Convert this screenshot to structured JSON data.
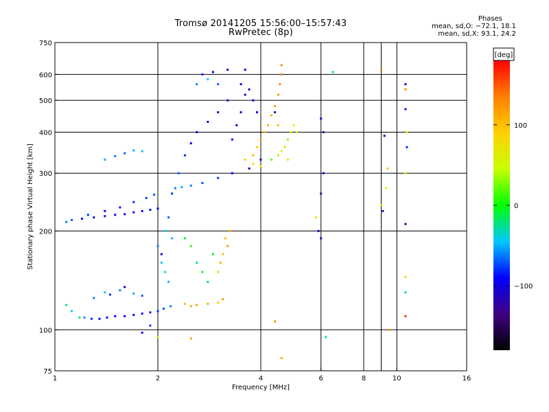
{
  "title_line1": "Tromsø 20141205 15:56:00–15:57:43",
  "title_line2": "RwPretec (8p)",
  "stats": {
    "heading": "Phases",
    "o_line": "mean, sd,O: −72.1, 18.1",
    "x_line": "mean, sd,X: 93.1, 24.2"
  },
  "colorbar": {
    "unit": "[deg]",
    "ticks": [
      "100",
      "0",
      "−100"
    ],
    "tick_values": [
      100,
      0,
      -100
    ],
    "range": [
      -180,
      180
    ],
    "colors": [
      "#000000",
      "#400080",
      "#0000ff",
      "#00c8ff",
      "#00ff00",
      "#c8ff00",
      "#ffd000",
      "#ff8000",
      "#ff0000"
    ]
  },
  "chart_data": {
    "type": "scatter",
    "xlabel": "Frequency [MHz]",
    "ylabel": "Stationary phase Virtual Height [km]",
    "xscale": "log",
    "yscale": "log",
    "xlim": [
      1,
      16
    ],
    "ylim": [
      75,
      750
    ],
    "xticks": [
      1,
      2,
      4,
      6,
      8,
      10,
      16
    ],
    "xtick_labels": [
      "1",
      "2",
      "4",
      "6",
      "8",
      "10",
      "16"
    ],
    "x_gridlines": [
      2,
      4,
      6,
      8,
      9,
      10
    ],
    "yticks": [
      75,
      100,
      200,
      300,
      400,
      500,
      600,
      750
    ],
    "ytick_labels": [
      "75",
      "100",
      "200",
      "300",
      "400",
      "500",
      "600",
      "750"
    ],
    "y_gridlines": [
      100,
      200,
      300,
      400,
      500,
      600
    ],
    "grid": true,
    "color_encoding": "phase [deg]",
    "points": [
      [
        1.08,
        119,
        -20
      ],
      [
        1.12,
        114,
        -40
      ],
      [
        1.18,
        109,
        -20
      ],
      [
        1.22,
        109,
        -60
      ],
      [
        1.28,
        108,
        -80
      ],
      [
        1.35,
        108,
        -90
      ],
      [
        1.42,
        109,
        -95
      ],
      [
        1.5,
        110,
        -100
      ],
      [
        1.6,
        110,
        -100
      ],
      [
        1.7,
        111,
        -95
      ],
      [
        1.8,
        112,
        -90
      ],
      [
        1.9,
        113,
        -85
      ],
      [
        2.0,
        114,
        -80
      ],
      [
        2.08,
        116,
        -70
      ],
      [
        2.18,
        118,
        -60
      ],
      [
        1.3,
        125,
        -60
      ],
      [
        1.4,
        130,
        -40
      ],
      [
        1.45,
        128,
        -80
      ],
      [
        1.55,
        132,
        -60
      ],
      [
        1.7,
        129,
        -50
      ],
      [
        1.8,
        127,
        -70
      ],
      [
        1.6,
        135,
        -90
      ],
      [
        1.08,
        213,
        -60
      ],
      [
        1.12,
        216,
        -70
      ],
      [
        1.2,
        218,
        -90
      ],
      [
        1.3,
        220,
        -95
      ],
      [
        1.4,
        222,
        -100
      ],
      [
        1.5,
        224,
        -100
      ],
      [
        1.6,
        225,
        -100
      ],
      [
        1.7,
        228,
        -100
      ],
      [
        1.8,
        230,
        -95
      ],
      [
        1.9,
        232,
        -95
      ],
      [
        2.0,
        234,
        -90
      ],
      [
        1.25,
        224,
        -80
      ],
      [
        1.4,
        230,
        -90
      ],
      [
        1.55,
        236,
        -85
      ],
      [
        1.7,
        245,
        -80
      ],
      [
        1.85,
        252,
        -75
      ],
      [
        1.95,
        258,
        -70
      ],
      [
        1.4,
        330,
        -50
      ],
      [
        1.5,
        338,
        -60
      ],
      [
        1.6,
        345,
        -70
      ],
      [
        1.7,
        352,
        -50
      ],
      [
        1.8,
        350,
        -40
      ],
      [
        2.0,
        180,
        -60
      ],
      [
        2.05,
        160,
        -40
      ],
      [
        2.1,
        150,
        -30
      ],
      [
        2.15,
        140,
        -50
      ],
      [
        2.1,
        200,
        -40
      ],
      [
        2.15,
        220,
        -70
      ],
      [
        2.2,
        190,
        -50
      ],
      [
        2.05,
        170,
        -100
      ],
      [
        2.2,
        260,
        -80
      ],
      [
        2.25,
        270,
        -60
      ],
      [
        2.35,
        272,
        -50
      ],
      [
        2.5,
        275,
        -60
      ],
      [
        2.7,
        280,
        -70
      ],
      [
        3.0,
        290,
        -80
      ],
      [
        3.3,
        300,
        -90
      ],
      [
        3.7,
        310,
        -100
      ],
      [
        4.0,
        330,
        -110
      ],
      [
        2.3,
        300,
        -70
      ],
      [
        2.4,
        340,
        -80
      ],
      [
        2.5,
        370,
        -90
      ],
      [
        2.6,
        400,
        -95
      ],
      [
        2.8,
        430,
        -100
      ],
      [
        3.0,
        460,
        -100
      ],
      [
        3.2,
        500,
        -105
      ],
      [
        3.5,
        560,
        -110
      ],
      [
        3.6,
        620,
        -110
      ],
      [
        2.6,
        560,
        -60
      ],
      [
        2.7,
        600,
        -80
      ],
      [
        2.8,
        580,
        -40
      ],
      [
        2.9,
        610,
        -90
      ],
      [
        3.0,
        560,
        -70
      ],
      [
        3.2,
        620,
        -100
      ],
      [
        3.3,
        380,
        -105
      ],
      [
        3.4,
        420,
        -110
      ],
      [
        3.5,
        460,
        -105
      ],
      [
        3.6,
        520,
        -110
      ],
      [
        3.7,
        540,
        -110
      ],
      [
        3.8,
        500,
        -105
      ],
      [
        3.9,
        460,
        -100
      ],
      [
        2.4,
        120,
        100
      ],
      [
        2.5,
        118,
        110
      ],
      [
        2.6,
        119,
        120
      ],
      [
        2.8,
        120,
        110
      ],
      [
        3.0,
        121,
        100
      ],
      [
        3.1,
        124,
        120
      ],
      [
        3.0,
        150,
        90
      ],
      [
        3.05,
        160,
        110
      ],
      [
        3.1,
        170,
        100
      ],
      [
        3.2,
        180,
        120
      ],
      [
        3.15,
        190,
        100
      ],
      [
        3.25,
        200,
        110
      ],
      [
        2.4,
        190,
        -10
      ],
      [
        2.5,
        180,
        10
      ],
      [
        2.6,
        160,
        -20
      ],
      [
        2.7,
        150,
        0
      ],
      [
        2.8,
        140,
        -30
      ],
      [
        2.9,
        170,
        -10
      ],
      [
        3.8,
        340,
        100
      ],
      [
        3.9,
        360,
        90
      ],
      [
        4.0,
        380,
        110
      ],
      [
        4.1,
        400,
        100
      ],
      [
        4.2,
        420,
        110
      ],
      [
        4.3,
        450,
        110
      ],
      [
        4.4,
        480,
        120
      ],
      [
        4.5,
        520,
        120
      ],
      [
        4.55,
        560,
        130
      ],
      [
        4.6,
        600,
        130
      ],
      [
        4.6,
        640,
        130
      ],
      [
        4.5,
        420,
        100
      ],
      [
        4.3,
        330,
        20
      ],
      [
        4.5,
        340,
        40
      ],
      [
        4.6,
        350,
        50
      ],
      [
        4.7,
        360,
        40
      ],
      [
        4.8,
        380,
        30
      ],
      [
        4.9,
        400,
        60
      ],
      [
        5.0,
        420,
        50
      ],
      [
        5.1,
        400,
        40
      ],
      [
        4.8,
        330,
        70
      ],
      [
        3.6,
        330,
        90
      ],
      [
        3.8,
        320,
        80
      ],
      [
        4.0,
        315,
        70
      ],
      [
        5.8,
        220,
        80
      ],
      [
        6.0,
        260,
        -120
      ],
      [
        6.1,
        300,
        -110
      ],
      [
        6.0,
        440,
        -110
      ],
      [
        6.1,
        400,
        -120
      ],
      [
        6.0,
        190,
        -110
      ],
      [
        6.5,
        610,
        -40
      ],
      [
        9.0,
        620,
        130
      ],
      [
        9.2,
        390,
        -100
      ],
      [
        9.3,
        270,
        40
      ],
      [
        9.0,
        240,
        60
      ],
      [
        9.4,
        310,
        90
      ],
      [
        9.1,
        230,
        -110
      ],
      [
        9.5,
        100,
        120
      ],
      [
        10.6,
        560,
        -100
      ],
      [
        10.6,
        540,
        130
      ],
      [
        10.6,
        470,
        -110
      ],
      [
        10.7,
        400,
        60
      ],
      [
        10.7,
        360,
        -80
      ],
      [
        10.6,
        300,
        50
      ],
      [
        10.6,
        210,
        -120
      ],
      [
        10.6,
        145,
        90
      ],
      [
        10.6,
        130,
        -30
      ],
      [
        10.6,
        110,
        160
      ],
      [
        4.6,
        82,
        110
      ],
      [
        4.4,
        106,
        130
      ],
      [
        6.2,
        95,
        -20
      ],
      [
        2.5,
        94,
        120
      ],
      [
        1.8,
        98,
        -100
      ],
      [
        2.0,
        95,
        60
      ],
      [
        1.9,
        103,
        -80
      ],
      [
        5.9,
        200,
        -110
      ],
      [
        4.4,
        460,
        -120
      ]
    ]
  }
}
